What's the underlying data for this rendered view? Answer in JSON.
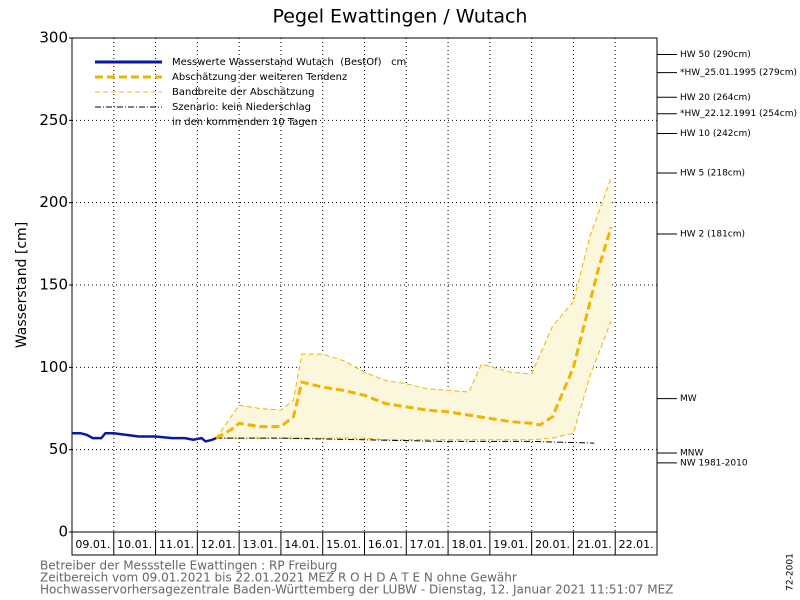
{
  "chart_data": {
    "type": "line",
    "title": "Pegel Ewattingen / Wutach",
    "y_label": "Wasserstand [cm]",
    "categories": [
      "09.01.",
      "10.01.",
      "11.01.",
      "12.01.",
      "13.01.",
      "14.01.",
      "15.01.",
      "16.01.",
      "17.01.",
      "18.01.",
      "19.01.",
      "20.01.",
      "21.01.",
      "22.01."
    ],
    "ylim": [
      0,
      300
    ],
    "yticks": [
      0,
      50,
      100,
      150,
      200,
      250,
      300
    ],
    "grid": true,
    "series": [
      {
        "name": "Messwerte Wasserstand Wutach  (BestOf)   cm",
        "color": "#0a1aa0",
        "x": [
          0,
          0.2,
          0.35,
          0.5,
          0.7,
          0.8,
          1.0,
          1.3,
          1.6,
          2.0,
          2.4,
          2.7,
          2.9,
          3.1,
          3.2,
          3.35,
          3.45
        ],
        "values": [
          60,
          60,
          59,
          57,
          57,
          60,
          60,
          59,
          58,
          58,
          57,
          57,
          56,
          57,
          55,
          56,
          57
        ]
      },
      {
        "name": "Abschätzung der weiteren Tendenz",
        "color": "#f0b400",
        "x": [
          3.45,
          3.8,
          4.0,
          4.5,
          5.0,
          5.3,
          5.5,
          6.0,
          6.5,
          7.0,
          7.5,
          8.0,
          8.5,
          9.0,
          9.5,
          10.0,
          10.5,
          11.0,
          11.2,
          11.5,
          12.0,
          12.3,
          12.6,
          12.9
        ],
        "values": [
          57,
          62,
          66,
          64,
          64,
          70,
          91,
          88,
          86,
          83,
          78,
          76,
          74,
          73,
          71,
          69,
          67,
          66,
          65,
          70,
          100,
          130,
          160,
          185
        ]
      },
      {
        "name": "Bandbreite der Abschätzung",
        "color": "#f0b400",
        "x": [
          3.45,
          4.0,
          4.5,
          5.0,
          5.3,
          5.5,
          6.0,
          6.5,
          7.0,
          7.5,
          8.0,
          8.5,
          9.0,
          9.5,
          9.8,
          10.5,
          11.0,
          11.5,
          12.0,
          12.4,
          12.9
        ],
        "upper": [
          57,
          77,
          75,
          74,
          80,
          108,
          108,
          104,
          97,
          92,
          90,
          87,
          86,
          85,
          102,
          97,
          96,
          125,
          140,
          180,
          215
        ],
        "lower": [
          57,
          57,
          57,
          57,
          57,
          57,
          57,
          57,
          57,
          56,
          56,
          56,
          56,
          56,
          56,
          56,
          56,
          57,
          60,
          95,
          128
        ]
      },
      {
        "name": "Szenario: kein Niederschlag",
        "color": "#000000",
        "x": [
          3.45,
          5.0,
          7.0,
          9.0,
          11.0,
          12.5
        ],
        "values": [
          57,
          57,
          56,
          55,
          55,
          54
        ]
      }
    ],
    "legend_note": "in den kommenden 10 Tagen",
    "levels": [
      {
        "label": "HW 50 (290cm)",
        "value": 290
      },
      {
        "label": "*HW_25.01.1995 (279cm)",
        "value": 279
      },
      {
        "label": "HW 20 (264cm)",
        "value": 264
      },
      {
        "label": "*HW_22.12.1991 (254cm)",
        "value": 254
      },
      {
        "label": "HW 10 (242cm)",
        "value": 242
      },
      {
        "label": "HW 5 (218cm)",
        "value": 218
      },
      {
        "label": "HW 2 (181cm)",
        "value": 181
      },
      {
        "label": "MW",
        "value": 81
      },
      {
        "label": "MNW",
        "value": 48
      },
      {
        "label": "NW 1981-2010",
        "value": 42
      }
    ],
    "footer": [
      "Betreiber der Messstelle Ewattingen : RP Freiburg",
      "Zeitbereich vom 09.01.2021 bis 22.01.2021    MEZ    R O H D A T E N ohne Gewähr",
      "Hochwasservorhersagezentrale Baden-Württemberg der LUBW - Dienstag, 12. Januar 2021 11:51:07 MEZ"
    ],
    "code": "72-2001"
  }
}
